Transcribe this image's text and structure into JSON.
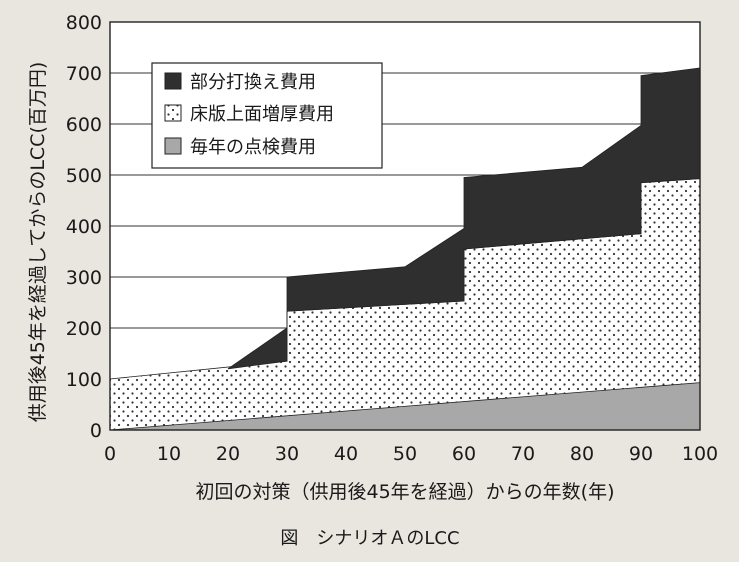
{
  "chart_data": {
    "type": "area",
    "stacked": true,
    "xlabel": "初回の対策（供用後45年を経過）からの年数(年)",
    "ylabel": "供用後45年を経過してからのLCC(百万円)",
    "caption": "図　シナリオＡのLCC",
    "xlim": [
      0,
      100
    ],
    "ylim": [
      0,
      800
    ],
    "x_ticks": [
      "0",
      "10",
      "20",
      "30",
      "40",
      "50",
      "60",
      "70",
      "80",
      "90",
      "100"
    ],
    "y_ticks": [
      "0",
      "100",
      "200",
      "300",
      "400",
      "500",
      "600",
      "700",
      "800"
    ],
    "grid": "horizontal",
    "legend_position": "top-left",
    "series": [
      {
        "name": "毎年の点検費用",
        "color": "#a8a8a8",
        "pattern": "solid-gray",
        "points": [
          [
            0,
            0
          ],
          [
            100,
            93
          ]
        ]
      },
      {
        "name": "床版上面増厚費用",
        "color": "#ffffff",
        "pattern": "dotted",
        "points": [
          [
            0,
            100
          ],
          [
            30,
            135
          ],
          [
            30,
            233
          ],
          [
            60,
            253
          ],
          [
            60,
            355
          ],
          [
            90,
            385
          ],
          [
            90,
            485
          ],
          [
            100,
            493
          ]
        ]
      },
      {
        "name": "部分打換え費用",
        "color": "#2f2f2f",
        "pattern": "solid-dark",
        "points": [
          [
            20,
            120
          ],
          [
            30,
            200
          ],
          [
            30,
            300
          ],
          [
            50,
            320
          ],
          [
            60,
            395
          ],
          [
            60,
            495
          ],
          [
            80,
            515
          ],
          [
            90,
            597
          ],
          [
            90,
            695
          ],
          [
            100,
            710
          ]
        ]
      }
    ],
    "legend": [
      {
        "label": "部分打換え費用",
        "pattern": "solid-dark"
      },
      {
        "label": "床版上面増厚費用",
        "pattern": "dotted"
      },
      {
        "label": "毎年の点検費用",
        "pattern": "solid-gray"
      }
    ]
  }
}
